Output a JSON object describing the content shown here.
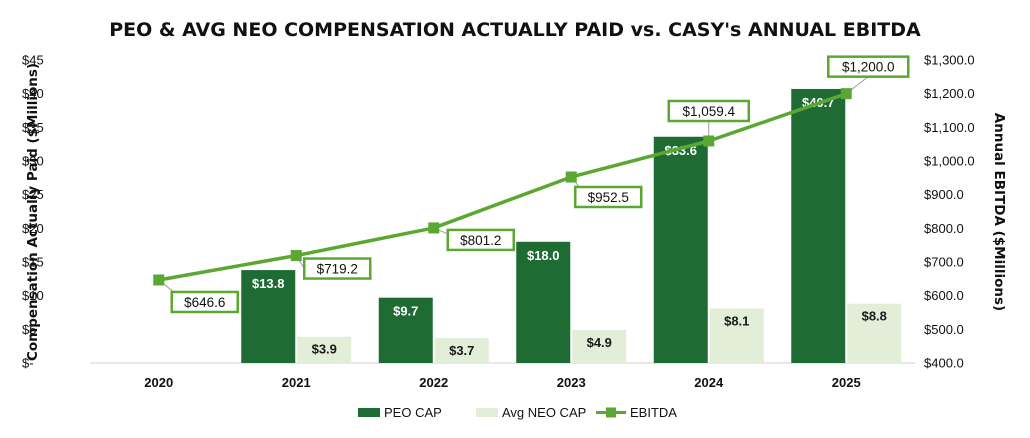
{
  "chart_data": {
    "type": "bar",
    "title": "PEO & AVG NEO COMPENSATION ACTUALLY PAID vs. CASY's ANNUAL EBITDA",
    "ylabel": "Compensation Actually Paid ($Millions)",
    "y2label": "Annual EBITDA ($Millions)",
    "categories": [
      "2020",
      "2021",
      "2022",
      "2023",
      "2024",
      "2025"
    ],
    "ylim": [
      0,
      45
    ],
    "y2lim": [
      400,
      1300
    ],
    "y_ticks": [
      "$-",
      "$5",
      "$10",
      "$15",
      "$20",
      "$25",
      "$30",
      "$35",
      "$40",
      "$45"
    ],
    "y2_ticks": [
      "$400.0",
      "$500.0",
      "$600.0",
      "$700.0",
      "$800.0",
      "$900.0",
      "$1,000.0",
      "$1,100.0",
      "$1,200.0",
      "$1,300.0"
    ],
    "series": [
      {
        "name": "PEO CAP",
        "type": "bar",
        "axis": "left",
        "color": "#1e6b34",
        "values": [
          null,
          13.8,
          9.7,
          18.0,
          33.6,
          40.7
        ],
        "labels": [
          "",
          "$13.8",
          "$9.7",
          "$18.0",
          "$33.6",
          "$40.7"
        ]
      },
      {
        "name": "Avg NEO CAP",
        "type": "bar",
        "axis": "left",
        "color": "#e2eed8",
        "values": [
          null,
          3.9,
          3.7,
          4.9,
          8.1,
          8.8
        ],
        "labels": [
          "",
          "$3.9",
          "$3.7",
          "$4.9",
          "$8.1",
          "$8.8"
        ]
      },
      {
        "name": "EBITDA",
        "type": "line",
        "axis": "right",
        "color": "#5aa832",
        "values": [
          646.6,
          719.2,
          801.2,
          952.5,
          1059.4,
          1200.0
        ],
        "labels": [
          "$646.6",
          "$719.2",
          "$801.2",
          "$952.5",
          "$1,059.4",
          "$1,200.0"
        ]
      }
    ],
    "grid": false,
    "legend": "bottom"
  }
}
